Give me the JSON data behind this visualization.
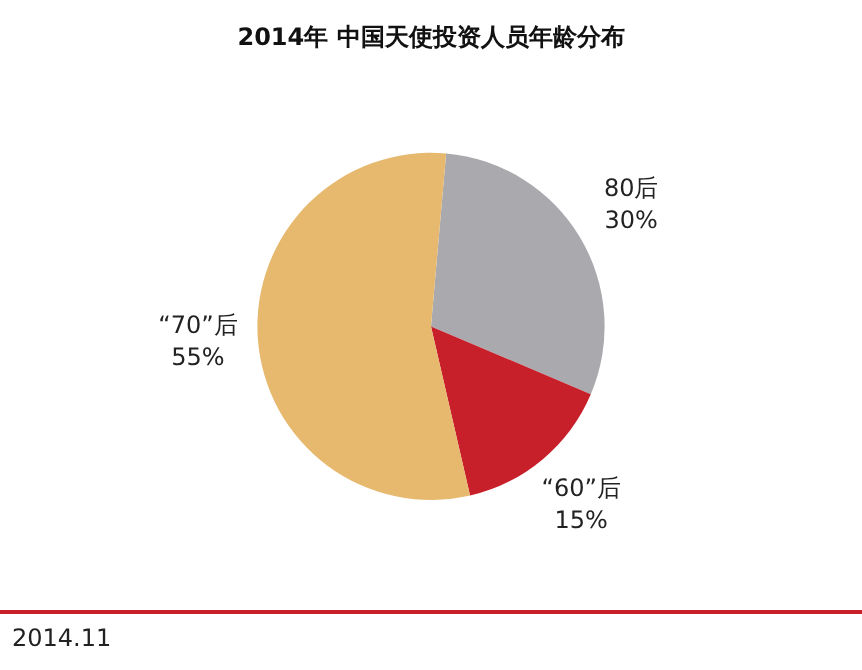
{
  "chart_data": {
    "type": "pie",
    "title": "2014年 中国天使投资人员年龄分布",
    "categories": [
      "80后",
      "“60”后",
      "“70”后"
    ],
    "values": [
      30,
      15,
      55
    ],
    "colors": [
      "#a9a9ae",
      "#c8202a",
      "#e6b96f"
    ],
    "value_labels": [
      "30%",
      "15%",
      "55%"
    ],
    "legend": false,
    "annotations": [
      "2014.11"
    ]
  }
}
